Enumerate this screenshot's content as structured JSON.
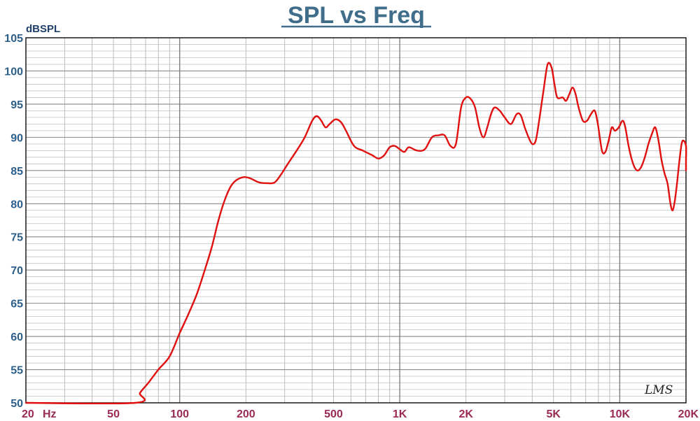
{
  "chart_data": {
    "type": "line",
    "title": "SPL vs Freq",
    "ylabel": "dBSPL",
    "xlabel": "",
    "x_unit_label": "Hz",
    "x_scale": "log",
    "xlim": [
      20,
      20000
    ],
    "ylim": [
      50,
      105
    ],
    "y_ticks": [
      50,
      55,
      60,
      65,
      70,
      75,
      80,
      85,
      90,
      95,
      100,
      105
    ],
    "x_ticks": [
      {
        "value": 20,
        "label": "20"
      },
      {
        "value": 50,
        "label": "50"
      },
      {
        "value": 100,
        "label": "100"
      },
      {
        "value": 200,
        "label": "200"
      },
      {
        "value": 500,
        "label": "500"
      },
      {
        "value": 1000,
        "label": "1K"
      },
      {
        "value": 2000,
        "label": "2K"
      },
      {
        "value": 5000,
        "label": "5K"
      },
      {
        "value": 10000,
        "label": "10K"
      },
      {
        "value": 20000,
        "label": "20K"
      }
    ],
    "grid": true,
    "watermark": "LMS",
    "series": [
      {
        "color": "#e01010",
        "points": [
          [
            20,
            50
          ],
          [
            63,
            50
          ],
          [
            66,
            51.5
          ],
          [
            72,
            53
          ],
          [
            80,
            55
          ],
          [
            90,
            57
          ],
          [
            100,
            60.5
          ],
          [
            110,
            63.5
          ],
          [
            120,
            66.5
          ],
          [
            130,
            70
          ],
          [
            140,
            73.5
          ],
          [
            150,
            77.5
          ],
          [
            160,
            80.5
          ],
          [
            170,
            82.5
          ],
          [
            180,
            83.5
          ],
          [
            195,
            84
          ],
          [
            210,
            83.8
          ],
          [
            230,
            83.2
          ],
          [
            250,
            83.1
          ],
          [
            270,
            83.2
          ],
          [
            290,
            84.5
          ],
          [
            310,
            86
          ],
          [
            340,
            88
          ],
          [
            370,
            90
          ],
          [
            400,
            92.5
          ],
          [
            420,
            93.2
          ],
          [
            440,
            92.5
          ],
          [
            460,
            91.5
          ],
          [
            480,
            92
          ],
          [
            510,
            92.7
          ],
          [
            540,
            92.3
          ],
          [
            570,
            91
          ],
          [
            620,
            88.7
          ],
          [
            680,
            88
          ],
          [
            750,
            87.3
          ],
          [
            800,
            86.8
          ],
          [
            850,
            87.3
          ],
          [
            900,
            88.5
          ],
          [
            950,
            88.7
          ],
          [
            1000,
            88.2
          ],
          [
            1050,
            87.8
          ],
          [
            1100,
            88.5
          ],
          [
            1200,
            88
          ],
          [
            1300,
            88.2
          ],
          [
            1400,
            90
          ],
          [
            1500,
            90.3
          ],
          [
            1600,
            90.3
          ],
          [
            1700,
            88.7
          ],
          [
            1800,
            89
          ],
          [
            1900,
            94.5
          ],
          [
            2000,
            96
          ],
          [
            2100,
            95.8
          ],
          [
            2200,
            94.5
          ],
          [
            2300,
            91.5
          ],
          [
            2400,
            90
          ],
          [
            2500,
            91.5
          ],
          [
            2600,
            93.5
          ],
          [
            2700,
            94.5
          ],
          [
            2850,
            94
          ],
          [
            3000,
            93
          ],
          [
            3200,
            92
          ],
          [
            3400,
            93.5
          ],
          [
            3550,
            93.3
          ],
          [
            3700,
            91.5
          ],
          [
            3850,
            90
          ],
          [
            4000,
            89
          ],
          [
            4150,
            89.5
          ],
          [
            4300,
            92.5
          ],
          [
            4500,
            97
          ],
          [
            4700,
            101
          ],
          [
            4900,
            100.5
          ],
          [
            5050,
            98
          ],
          [
            5200,
            96
          ],
          [
            5500,
            96
          ],
          [
            5700,
            95.5
          ],
          [
            5900,
            96.5
          ],
          [
            6100,
            97.5
          ],
          [
            6300,
            96.5
          ],
          [
            6500,
            94.5
          ],
          [
            6800,
            92.5
          ],
          [
            7100,
            92.5
          ],
          [
            7400,
            93.5
          ],
          [
            7700,
            94
          ],
          [
            7950,
            92
          ],
          [
            8300,
            88
          ],
          [
            8600,
            87.8
          ],
          [
            8900,
            89.5
          ],
          [
            9200,
            91.5
          ],
          [
            9500,
            91
          ],
          [
            9900,
            91.5
          ],
          [
            10300,
            92.5
          ],
          [
            10600,
            91.5
          ],
          [
            11000,
            88.5
          ],
          [
            11500,
            86
          ],
          [
            12000,
            85
          ],
          [
            12500,
            85.5
          ],
          [
            13000,
            87
          ],
          [
            13500,
            89
          ],
          [
            14000,
            90.5
          ],
          [
            14500,
            91.5
          ],
          [
            15000,
            89.5
          ],
          [
            15500,
            86.5
          ],
          [
            16000,
            84.5
          ],
          [
            16500,
            83
          ],
          [
            17000,
            80
          ],
          [
            17400,
            79
          ],
          [
            17800,
            80.5
          ],
          [
            18200,
            83
          ],
          [
            18600,
            86
          ],
          [
            19100,
            89
          ],
          [
            19500,
            89.5
          ],
          [
            20000,
            88.7
          ],
          [
            20500,
            86.5
          ],
          [
            21000,
            85.2
          ],
          [
            21600,
            85
          ]
        ]
      }
    ]
  }
}
